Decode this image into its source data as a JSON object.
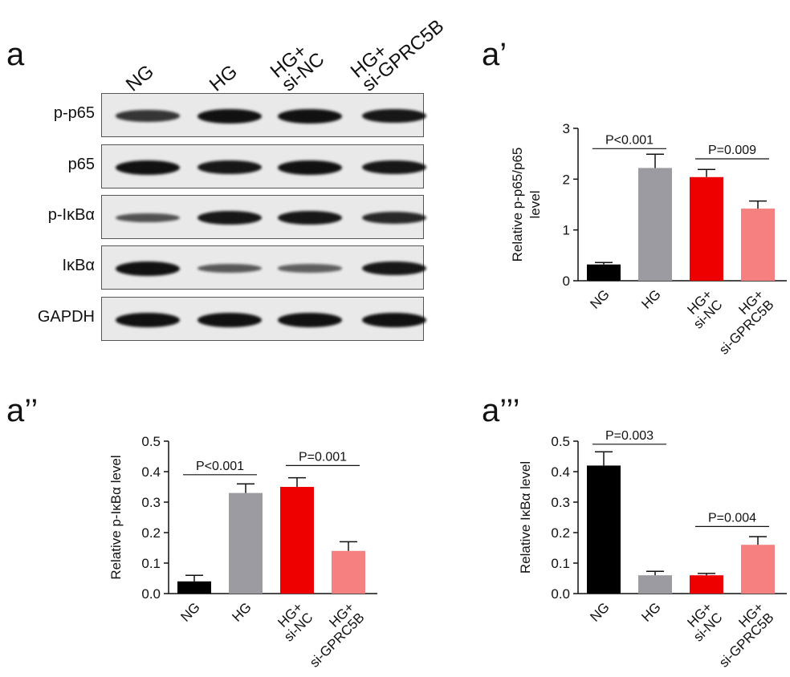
{
  "figure": {
    "panels": {
      "a": "a",
      "a1": "a’",
      "a2": "a’’",
      "a3": "a’’’"
    }
  },
  "blot": {
    "lanes": [
      "NG",
      "HG",
      "HG+\nsi-NC",
      "HG+\nsi-GPRC5B"
    ],
    "rows": [
      {
        "label": "p-p65",
        "intensity": [
          0.7,
          1.0,
          1.0,
          0.95
        ]
      },
      {
        "label": "p65",
        "intensity": [
          1.0,
          0.95,
          1.0,
          0.95
        ]
      },
      {
        "label": "p-IκBα",
        "intensity": [
          0.45,
          0.95,
          0.95,
          0.8
        ]
      },
      {
        "label": "IκBα",
        "intensity": [
          1.0,
          0.4,
          0.35,
          0.95
        ]
      },
      {
        "label": "GAPDH",
        "intensity": [
          1.0,
          1.0,
          1.0,
          1.0
        ]
      }
    ]
  },
  "colors": {
    "NG": "#000000",
    "HG": "#9b9ba1",
    "HG_siNC": "#ee0000",
    "HG_siGPRC5B": "#f48080"
  },
  "chart_data": [
    {
      "type": "bar",
      "panel": "a’",
      "categories": [
        "NG",
        "HG",
        "HG+\nsi-NC",
        "HG+\nsi-GPRC5B"
      ],
      "values": [
        0.32,
        2.22,
        2.04,
        1.42
      ],
      "errors": [
        0.04,
        0.27,
        0.15,
        0.15
      ],
      "ylabel": "Relative p-p65/p65\nlevel",
      "ylim": [
        0,
        3
      ],
      "yticks": [
        "0",
        "1",
        "2",
        "3"
      ],
      "annotations": [
        {
          "text": "P<0.001",
          "from": 0,
          "to": 1,
          "y": 2.6
        },
        {
          "text": "P=0.009",
          "from": 2,
          "to": 3,
          "y": 2.4
        }
      ]
    },
    {
      "type": "bar",
      "panel": "a’’",
      "categories": [
        "NG",
        "HG",
        "HG+\nsi-NC",
        "HG+\nsi-GPRC5B"
      ],
      "values": [
        0.04,
        0.33,
        0.35,
        0.14
      ],
      "errors": [
        0.02,
        0.03,
        0.03,
        0.03
      ],
      "ylabel": "Relative p-IκBα level",
      "ylim": [
        0,
        0.5
      ],
      "yticks": [
        "0.0",
        "0.1",
        "0.2",
        "0.3",
        "0.4",
        "0.5"
      ],
      "annotations": [
        {
          "text": "P<0.001",
          "from": 0,
          "to": 1,
          "y": 0.39
        },
        {
          "text": "P=0.001",
          "from": 2,
          "to": 3,
          "y": 0.42
        }
      ]
    },
    {
      "type": "bar",
      "panel": "a’’’",
      "categories": [
        "NG",
        "HG",
        "HG+\nsi-NC",
        "HG+\nsi-GPRC5B"
      ],
      "values": [
        0.42,
        0.06,
        0.06,
        0.16
      ],
      "errors": [
        0.045,
        0.013,
        0.006,
        0.027
      ],
      "ylabel": "Relative IκBα level",
      "ylim": [
        0,
        0.5
      ],
      "yticks": [
        "0.0",
        "0.1",
        "0.2",
        "0.3",
        "0.4",
        "0.5"
      ],
      "annotations": [
        {
          "text": "P=0.003",
          "from": 0,
          "to": 1,
          "y": 0.49
        },
        {
          "text": "P=0.004",
          "from": 2,
          "to": 3,
          "y": 0.22
        }
      ]
    }
  ]
}
